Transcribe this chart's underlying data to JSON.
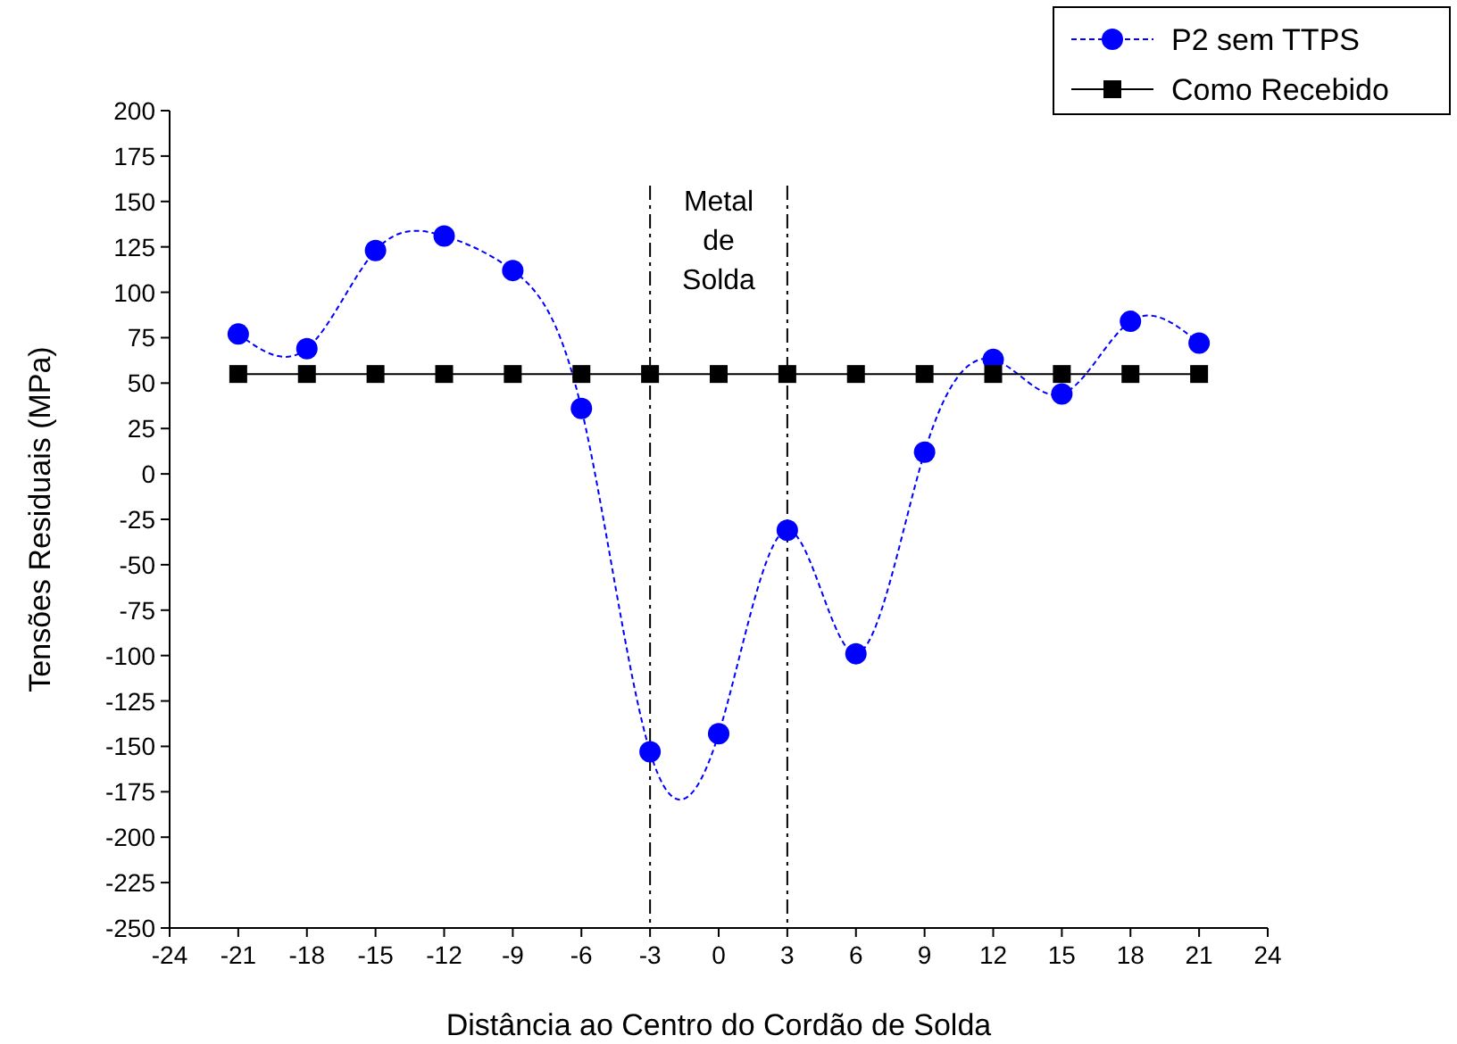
{
  "chart_data": {
    "type": "line",
    "xlabel": "Distância ao Centro do Cordão de Solda",
    "ylabel": "Tensões Residuais (MPa)",
    "x": [
      -21,
      -18,
      -15,
      -12,
      -9,
      -6,
      -3,
      0,
      3,
      6,
      9,
      12,
      15,
      18,
      21
    ],
    "series": [
      {
        "name": "P2 sem TTPS",
        "color": "#0000ff",
        "marker": "circle",
        "line_style": "dashed",
        "values": [
          77,
          69,
          123,
          131,
          112,
          36,
          -153,
          -143,
          -31,
          -99,
          12,
          63,
          44,
          84,
          72
        ]
      },
      {
        "name": "Como Recebido",
        "color": "#000000",
        "marker": "square",
        "line_style": "solid",
        "values": [
          55,
          55,
          55,
          55,
          55,
          55,
          55,
          55,
          55,
          55,
          55,
          55,
          55,
          55,
          55
        ]
      }
    ],
    "xlim": [
      -24,
      24
    ],
    "xticks": [
      -24,
      -21,
      -18,
      -15,
      -12,
      -9,
      -6,
      -3,
      0,
      3,
      6,
      9,
      12,
      15,
      18,
      21,
      24
    ],
    "ylim": [
      -250,
      200
    ],
    "yticks": [
      -250,
      -225,
      -200,
      -175,
      -150,
      -125,
      -100,
      -75,
      -50,
      -25,
      0,
      25,
      50,
      75,
      100,
      125,
      150,
      175,
      200
    ],
    "ref_lines": [
      {
        "axis": "x",
        "value": -3,
        "line_style": "dashdot",
        "color": "#000000"
      },
      {
        "axis": "x",
        "value": 3,
        "line_style": "dashdot",
        "color": "#000000"
      }
    ],
    "annotations": [
      "Metal de Solda"
    ],
    "grid": false,
    "legend": "top right"
  }
}
